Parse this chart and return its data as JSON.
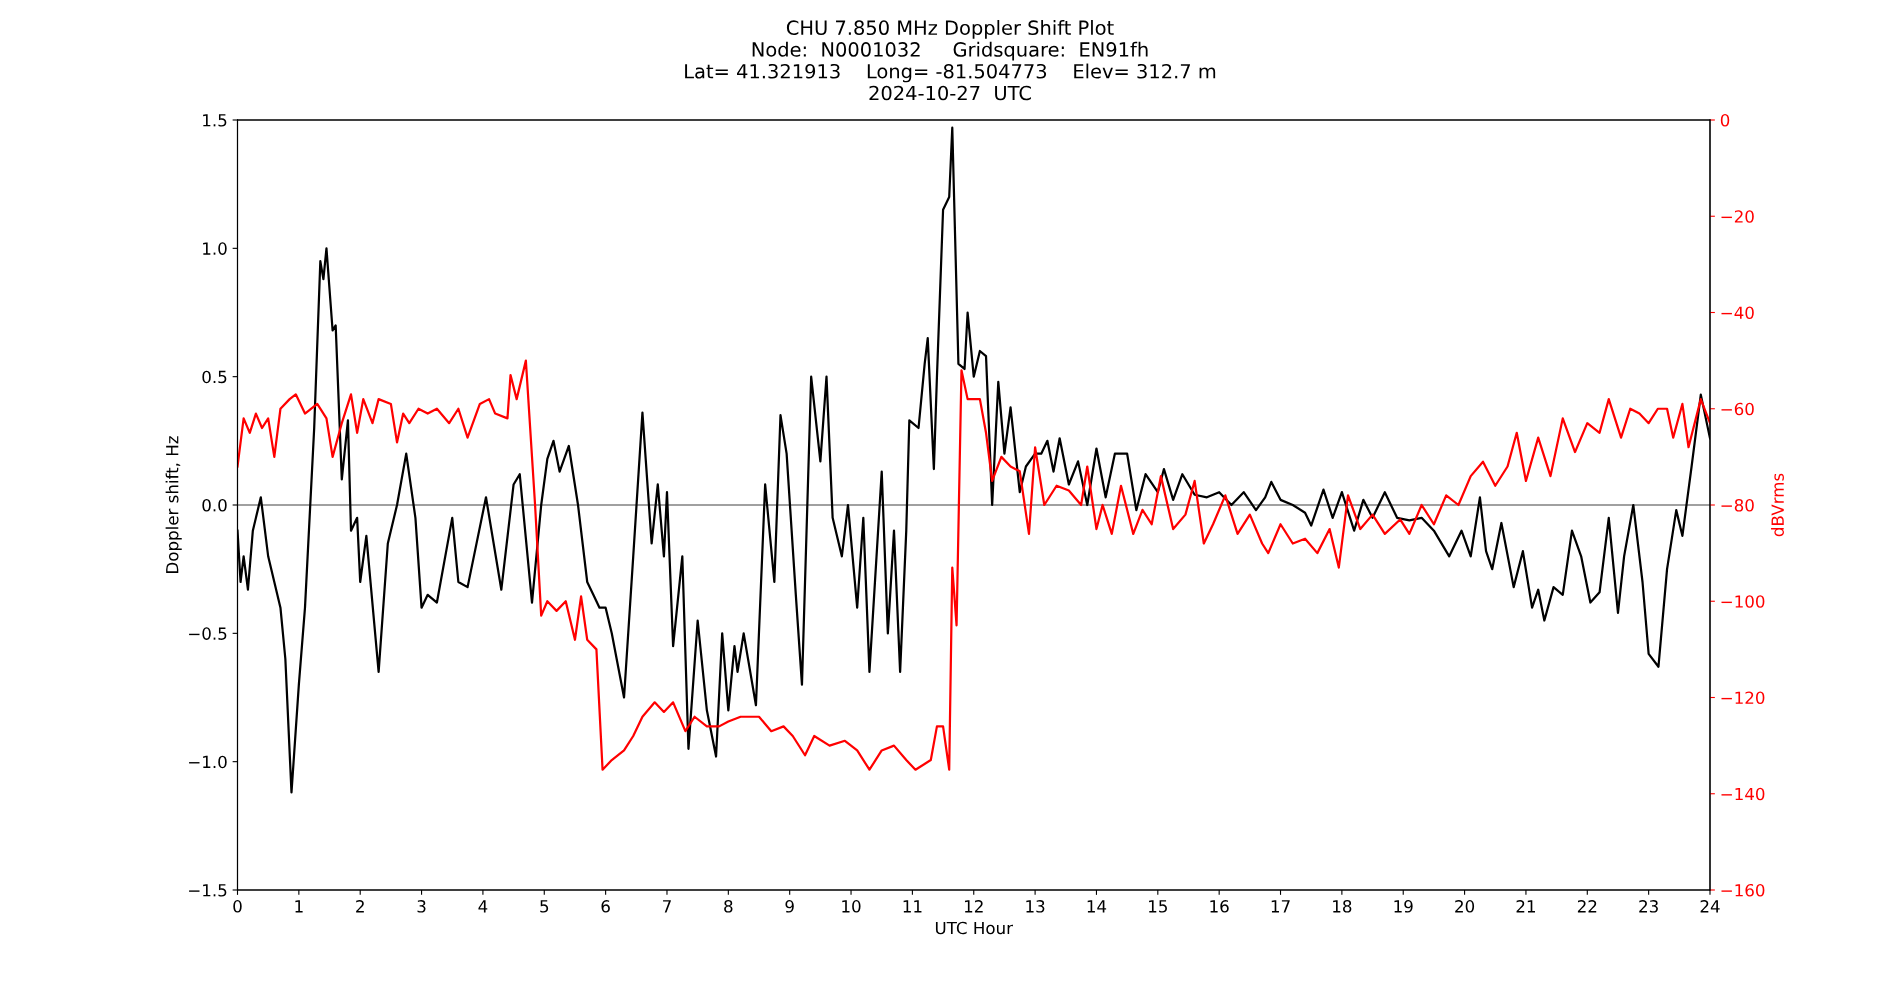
{
  "chart_data": {
    "type": "line",
    "title": "CHU 7.850 MHz Doppler Shift Plot\nNode:  N0001032     Gridsquare:  EN91fh\nLat= 41.321913    Long= -81.504773    Elev= 312.7 m\n2024-10-27  UTC",
    "xlabel": "UTC Hour",
    "ylabel": "Doppler shift, Hz",
    "y2label": "dBVrms",
    "xlim": [
      0,
      24
    ],
    "xticks": [
      0,
      1,
      2,
      3,
      4,
      5,
      6,
      7,
      8,
      9,
      10,
      11,
      12,
      13,
      14,
      15,
      16,
      17,
      18,
      19,
      20,
      21,
      22,
      23,
      24
    ],
    "ylim": [
      -1.5,
      1.5
    ],
    "yticks": [
      {
        "value": -1.5,
        "label": "−1.5"
      },
      {
        "value": -1.0,
        "label": "−1.0"
      },
      {
        "value": -0.5,
        "label": "−0.5"
      },
      {
        "value": 0.0,
        "label": "0.0"
      },
      {
        "value": 0.5,
        "label": "0.5"
      },
      {
        "value": 1.0,
        "label": "1.0"
      },
      {
        "value": 1.5,
        "label": "1.5"
      }
    ],
    "y2lim": [
      -160,
      0
    ],
    "y2ticks": [
      {
        "value": -160,
        "label": "−160"
      },
      {
        "value": -140,
        "label": "−140"
      },
      {
        "value": -120,
        "label": "−120"
      },
      {
        "value": -100,
        "label": "−100"
      },
      {
        "value": -80,
        "label": "−80"
      },
      {
        "value": -60,
        "label": "−60"
      },
      {
        "value": -40,
        "label": "−40"
      },
      {
        "value": -20,
        "label": "−20"
      },
      0
    ],
    "grid": false,
    "legend": false,
    "ref_lines": [
      {
        "axis": "y",
        "value": 0,
        "color": "#808080"
      }
    ],
    "series": [
      {
        "color": "#000000",
        "x": [
          0,
          0.05,
          0.1,
          0.17,
          0.25,
          0.38,
          0.5,
          0.7,
          0.78,
          0.88,
          1.0,
          1.1,
          1.25,
          1.35,
          1.4,
          1.45,
          1.55,
          1.6,
          1.7,
          1.8,
          1.85,
          1.95,
          2.0,
          2.1,
          2.3,
          2.45,
          2.6,
          2.75,
          2.9,
          3.0,
          3.1,
          3.25,
          3.5,
          3.6,
          3.75,
          4.05,
          4.3,
          4.5,
          4.6,
          4.8,
          4.95,
          5.05,
          5.15,
          5.25,
          5.4,
          5.55,
          5.7,
          5.8,
          5.9,
          6.0,
          6.1,
          6.3,
          6.45,
          6.6,
          6.75,
          6.85,
          6.95,
          7.0,
          7.1,
          7.25,
          7.35,
          7.5,
          7.65,
          7.8,
          7.9,
          8.0,
          8.1,
          8.15,
          8.25,
          8.45,
          8.6,
          8.75,
          8.85,
          8.95,
          9.1,
          9.2,
          9.35,
          9.5,
          9.6,
          9.7,
          9.85,
          9.95,
          10.1,
          10.2,
          10.3,
          10.5,
          10.6,
          10.7,
          10.8,
          10.9,
          10.95,
          11.1,
          11.2,
          11.25,
          11.35,
          11.4,
          11.5,
          11.6,
          11.65,
          11.75,
          11.85,
          11.9,
          12.0,
          12.1,
          12.2,
          12.3,
          12.4,
          12.5,
          12.6,
          12.75,
          12.85,
          13.0,
          13.1,
          13.2,
          13.3,
          13.4,
          13.55,
          13.7,
          13.85,
          14.0,
          14.15,
          14.3,
          14.5,
          14.65,
          14.8,
          15.0,
          15.1,
          15.25,
          15.4,
          15.6,
          15.8,
          16.0,
          16.2,
          16.4,
          16.6,
          16.75,
          16.85,
          17.0,
          17.2,
          17.4,
          17.5,
          17.7,
          17.85,
          18.0,
          18.2,
          18.35,
          18.5,
          18.7,
          18.9,
          19.1,
          19.3,
          19.5,
          19.75,
          19.95,
          20.1,
          20.25,
          20.35,
          20.45,
          20.6,
          20.8,
          20.95,
          21.1,
          21.2,
          21.3,
          21.45,
          21.6,
          21.75,
          21.9,
          22.05,
          22.2,
          22.35,
          22.5,
          22.6,
          22.75,
          22.9,
          23.0,
          23.16,
          23.3,
          23.45,
          23.55,
          23.7,
          23.85,
          24.0
        ],
        "values": [
          -0.1,
          -0.3,
          -0.2,
          -0.33,
          -0.1,
          0.03,
          -0.2,
          -0.4,
          -0.6,
          -1.12,
          -0.7,
          -0.4,
          0.3,
          0.95,
          0.88,
          1.0,
          0.68,
          0.7,
          0.1,
          0.33,
          -0.1,
          -0.05,
          -0.3,
          -0.12,
          -0.65,
          -0.15,
          0.0,
          0.2,
          -0.05,
          -0.4,
          -0.35,
          -0.38,
          -0.05,
          -0.3,
          -0.32,
          0.03,
          -0.33,
          0.08,
          0.12,
          -0.38,
          0.0,
          0.18,
          0.25,
          0.13,
          0.23,
          0.0,
          -0.3,
          -0.35,
          -0.4,
          -0.4,
          -0.5,
          -0.75,
          -0.2,
          0.36,
          -0.15,
          0.08,
          -0.2,
          0.05,
          -0.55,
          -0.2,
          -0.95,
          -0.45,
          -0.8,
          -0.98,
          -0.5,
          -0.8,
          -0.55,
          -0.65,
          -0.5,
          -0.78,
          0.08,
          -0.3,
          0.35,
          0.2,
          -0.35,
          -0.7,
          0.5,
          0.17,
          0.5,
          -0.05,
          -0.2,
          0.0,
          -0.4,
          -0.05,
          -0.65,
          0.13,
          -0.5,
          -0.1,
          -0.65,
          -0.1,
          0.33,
          0.3,
          0.55,
          0.65,
          0.14,
          0.5,
          1.15,
          1.2,
          1.47,
          0.55,
          0.53,
          0.75,
          0.5,
          0.6,
          0.58,
          0.0,
          0.48,
          0.2,
          0.38,
          0.05,
          0.15,
          0.2,
          0.2,
          0.25,
          0.13,
          0.26,
          0.08,
          0.17,
          0.0,
          0.22,
          0.03,
          0.2,
          0.2,
          -0.02,
          0.12,
          0.05,
          0.14,
          0.02,
          0.12,
          0.04,
          0.03,
          0.05,
          0.0,
          0.05,
          -0.02,
          0.03,
          0.09,
          0.02,
          0.0,
          -0.03,
          -0.08,
          0.06,
          -0.05,
          0.05,
          -0.1,
          0.02,
          -0.05,
          0.05,
          -0.05,
          -0.06,
          -0.05,
          -0.1,
          -0.2,
          -0.1,
          -0.2,
          0.03,
          -0.18,
          -0.25,
          -0.07,
          -0.32,
          -0.18,
          -0.4,
          -0.33,
          -0.45,
          -0.32,
          -0.35,
          -0.1,
          -0.2,
          -0.38,
          -0.34,
          -0.05,
          -0.42,
          -0.2,
          0.0,
          -0.3,
          -0.58,
          -0.63,
          -0.25,
          -0.02,
          -0.12,
          0.15,
          0.43,
          0.26
        ]
      },
      {
        "color": "#ff0000",
        "axis": "y2",
        "x": [
          0,
          0.1,
          0.2,
          0.3,
          0.4,
          0.5,
          0.6,
          0.7,
          0.85,
          0.95,
          1.1,
          1.3,
          1.45,
          1.55,
          1.7,
          1.85,
          1.95,
          2.05,
          2.2,
          2.3,
          2.5,
          2.6,
          2.7,
          2.8,
          2.95,
          3.1,
          3.25,
          3.45,
          3.6,
          3.75,
          3.95,
          4.1,
          4.2,
          4.4,
          4.45,
          4.55,
          4.7,
          4.85,
          4.95,
          5.05,
          5.2,
          5.35,
          5.5,
          5.6,
          5.7,
          5.85,
          5.95,
          6.1,
          6.3,
          6.45,
          6.6,
          6.8,
          6.95,
          7.1,
          7.3,
          7.45,
          7.65,
          7.85,
          8.0,
          8.2,
          8.5,
          8.7,
          8.9,
          9.05,
          9.25,
          9.4,
          9.65,
          9.9,
          10.1,
          10.3,
          10.5,
          10.7,
          10.9,
          11.05,
          11.3,
          11.4,
          11.5,
          11.6,
          11.65,
          11.72,
          11.8,
          11.9,
          12.1,
          12.2,
          12.3,
          12.45,
          12.6,
          12.75,
          12.9,
          13.0,
          13.15,
          13.35,
          13.55,
          13.75,
          13.85,
          14.0,
          14.1,
          14.25,
          14.4,
          14.6,
          14.75,
          14.9,
          15.05,
          15.25,
          15.45,
          15.6,
          15.75,
          15.9,
          16.1,
          16.3,
          16.5,
          16.7,
          16.8,
          17.0,
          17.2,
          17.4,
          17.6,
          17.8,
          17.95,
          18.1,
          18.3,
          18.5,
          18.7,
          18.95,
          19.1,
          19.3,
          19.5,
          19.7,
          19.9,
          20.1,
          20.3,
          20.5,
          20.7,
          20.85,
          21.0,
          21.2,
          21.4,
          21.6,
          21.8,
          22.0,
          22.2,
          22.35,
          22.55,
          22.7,
          22.85,
          23.0,
          23.15,
          23.3,
          23.4,
          23.55,
          23.65,
          23.85,
          24.0
        ],
        "values": [
          -72,
          -62,
          -65,
          -61,
          -64,
          -62,
          -70,
          -60,
          -58,
          -57,
          -61,
          -59,
          -62,
          -70,
          -63,
          -57,
          -65,
          -58,
          -63,
          -58,
          -59,
          -67,
          -61,
          -63,
          -60,
          -61,
          -60,
          -63,
          -60,
          -66,
          -59,
          -58,
          -61,
          -62,
          -53,
          -58,
          -50,
          -80,
          -103,
          -100,
          -102,
          -100,
          -108,
          -99,
          -108,
          -110,
          -135,
          -133,
          -131,
          -128,
          -124,
          -121,
          -123,
          -121,
          -127,
          -124,
          -126,
          -126,
          -125,
          -124,
          -124,
          -127,
          -126,
          -128,
          -132,
          -128,
          -130,
          -129,
          -131,
          -135,
          -131,
          -130,
          -133,
          -135,
          -133,
          -126,
          -126,
          -135,
          -93,
          -105,
          -52,
          -58,
          -58,
          -65,
          -75,
          -70,
          -72,
          -73,
          -86,
          -68,
          -80,
          -76,
          -77,
          -80,
          -72,
          -85,
          -80,
          -86,
          -76,
          -86,
          -81,
          -84,
          -74,
          -85,
          -82,
          -75,
          -88,
          -84,
          -78,
          -86,
          -82,
          -88,
          -90,
          -84,
          -88,
          -87,
          -90,
          -85,
          -93,
          -78,
          -85,
          -82,
          -86,
          -83,
          -86,
          -80,
          -84,
          -78,
          -80,
          -74,
          -71,
          -76,
          -72,
          -65,
          -75,
          -66,
          -74,
          -62,
          -69,
          -63,
          -65,
          -58,
          -66,
          -60,
          -61,
          -63,
          -60,
          -60,
          -66,
          -59,
          -68,
          -58,
          -63
        ]
      }
    ]
  }
}
